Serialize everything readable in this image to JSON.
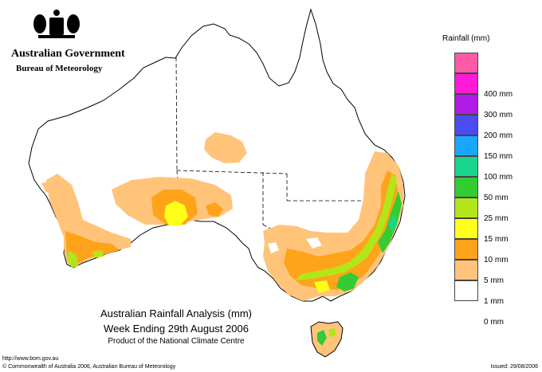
{
  "header": {
    "government": "Australian Government",
    "bureau": "Bureau of Meteorology"
  },
  "legend": {
    "title": "Rainfall (mm)",
    "items": [
      {
        "label": "",
        "color": "#ff5aa8"
      },
      {
        "label": "400 mm",
        "color": "#ff1ad9"
      },
      {
        "label": "300 mm",
        "color": "#b21ae6"
      },
      {
        "label": "200 mm",
        "color": "#4b4bf2"
      },
      {
        "label": "150 mm",
        "color": "#1aa6ff"
      },
      {
        "label": "100 mm",
        "color": "#19d68c"
      },
      {
        "label": "50 mm",
        "color": "#33cc33"
      },
      {
        "label": "25 mm",
        "color": "#b3e61a"
      },
      {
        "label": "15 mm",
        "color": "#ffff1a"
      },
      {
        "label": "10 mm",
        "color": "#ffa31a"
      },
      {
        "label": "5 mm",
        "color": "#ffc47a"
      },
      {
        "label": "1 mm",
        "color": "#ffffff"
      },
      {
        "label": "0 mm",
        "color": ""
      }
    ]
  },
  "map": {
    "title": "Australian Rainfall Analysis (mm)",
    "period": "Week Ending 29th August 2006",
    "credit": "Product of the National Climate Centre"
  },
  "footer": {
    "url": "http://www.bom.gov.au",
    "copyright": "© Commonwealth of Australia 2006, Australian Bureau of Meteorology",
    "issued": "Issued: 29/08/2006"
  }
}
